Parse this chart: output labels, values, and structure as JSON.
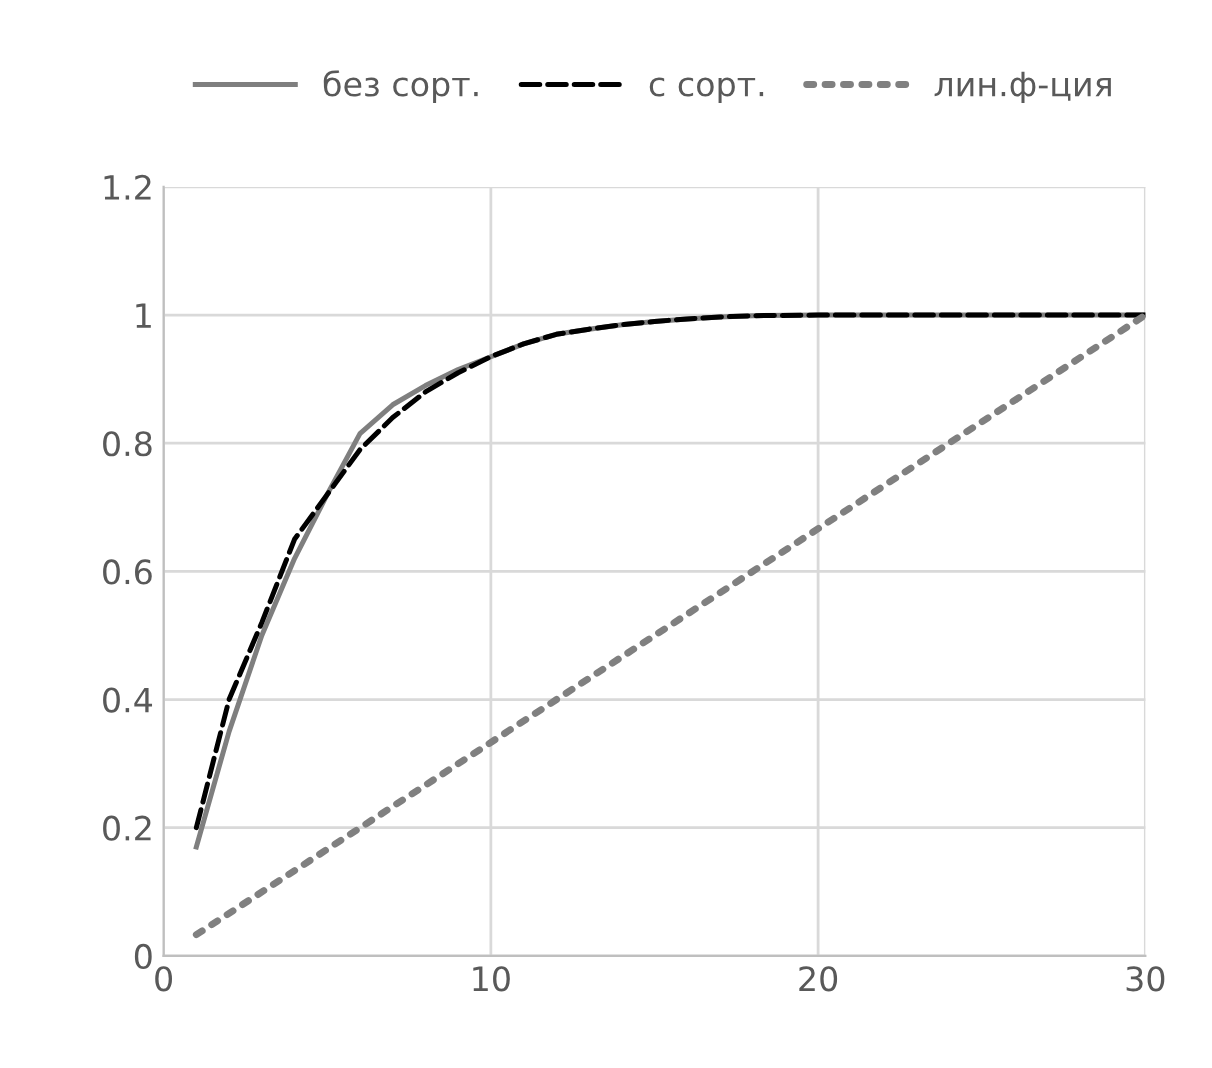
{
  "chart_data": {
    "type": "line",
    "legend": "top",
    "grid": true,
    "xlim": [
      0,
      30
    ],
    "xticks": [
      0,
      10,
      20,
      30
    ],
    "ylim": [
      0,
      1.2
    ],
    "yticks": [
      0,
      0.2,
      0.4,
      0.6,
      0.8,
      1,
      1.2
    ],
    "series": [
      {
        "name": "без сорт.",
        "color": "#7f7f7f",
        "line_style": "solid",
        "x": [
          1,
          2,
          3,
          4,
          5,
          6,
          7,
          8,
          9,
          10,
          11,
          12,
          13,
          14,
          15,
          16,
          17,
          18,
          20,
          25,
          30
        ],
        "values": [
          0.17,
          0.35,
          0.5,
          0.62,
          0.72,
          0.815,
          0.86,
          0.89,
          0.915,
          0.935,
          0.955,
          0.97,
          0.978,
          0.985,
          0.99,
          0.994,
          0.997,
          0.999,
          1,
          1,
          1
        ]
      },
      {
        "name": "с сорт.",
        "color": "#000000",
        "line_style": "dashed",
        "x": [
          1,
          2,
          3,
          4,
          5,
          6,
          7,
          8,
          9,
          10,
          11,
          12,
          13,
          14,
          15,
          16,
          17,
          18,
          20,
          25,
          30
        ],
        "values": [
          0.2,
          0.4,
          0.52,
          0.65,
          0.72,
          0.79,
          0.84,
          0.88,
          0.91,
          0.935,
          0.955,
          0.97,
          0.978,
          0.985,
          0.99,
          0.994,
          0.997,
          0.999,
          1,
          1,
          1
        ]
      },
      {
        "name": "лин.ф-ция",
        "color": "#808080",
        "line_style": "dotted",
        "x": [
          1,
          30
        ],
        "values": [
          0.033,
          1
        ]
      }
    ]
  }
}
